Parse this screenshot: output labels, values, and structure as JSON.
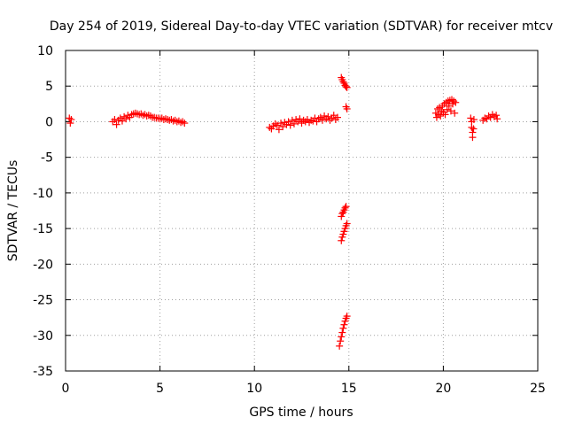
{
  "chart_data": {
    "type": "scatter",
    "title": "Day 254 of 2019, Sidereal Day-to-day VTEC variation (SDTVAR) for receiver mtcv",
    "xlabel": "GPS time / hours",
    "ylabel": "SDTVAR / TECUs",
    "xlim": [
      0,
      25
    ],
    "ylim": [
      -35,
      10
    ],
    "xticks": [
      0,
      5,
      10,
      15,
      20,
      25
    ],
    "yticks": [
      10,
      5,
      0,
      -5,
      -10,
      -15,
      -20,
      -25,
      -30,
      -35
    ],
    "xtick_labels": [
      "0",
      "5",
      "10",
      "15",
      "20",
      "25"
    ],
    "ytick_labels": [
      "10",
      "5",
      "0",
      "-5",
      "-10",
      "-15",
      "-20",
      "-25",
      "-30",
      "-35"
    ],
    "grid": true,
    "marker": "plus",
    "color": "#ff0000",
    "series": [
      {
        "name": "mtcv",
        "points": [
          [
            0.2,
            0.5
          ],
          [
            0.25,
            -0.2
          ],
          [
            0.3,
            0.3
          ],
          [
            2.5,
            0.0
          ],
          [
            2.6,
            0.3
          ],
          [
            2.7,
            -0.4
          ],
          [
            2.8,
            0.2
          ],
          [
            2.9,
            0.5
          ],
          [
            3.0,
            0.1
          ],
          [
            3.1,
            0.7
          ],
          [
            3.2,
            0.4
          ],
          [
            3.3,
            0.9
          ],
          [
            3.4,
            0.6
          ],
          [
            3.5,
            1.0
          ],
          [
            3.6,
            1.1
          ],
          [
            3.7,
            1.2
          ],
          [
            3.8,
            1.1
          ],
          [
            3.9,
            1.0
          ],
          [
            4.0,
            1.1
          ],
          [
            4.1,
            0.9
          ],
          [
            4.2,
            1.0
          ],
          [
            4.3,
            0.8
          ],
          [
            4.4,
            0.9
          ],
          [
            4.5,
            0.8
          ],
          [
            4.6,
            0.6
          ],
          [
            4.7,
            0.6
          ],
          [
            4.8,
            0.5
          ],
          [
            4.9,
            0.5
          ],
          [
            5.0,
            0.4
          ],
          [
            5.1,
            0.5
          ],
          [
            5.2,
            0.3
          ],
          [
            5.3,
            0.4
          ],
          [
            5.4,
            0.3
          ],
          [
            5.5,
            0.2
          ],
          [
            5.6,
            0.3
          ],
          [
            5.7,
            0.1
          ],
          [
            5.8,
            0.2
          ],
          [
            5.9,
            0.0
          ],
          [
            6.0,
            0.1
          ],
          [
            6.1,
            -0.1
          ],
          [
            6.2,
            0.0
          ],
          [
            6.3,
            -0.2
          ],
          [
            10.8,
            -0.8
          ],
          [
            10.9,
            -1.0
          ],
          [
            11.0,
            -0.6
          ],
          [
            11.1,
            -0.3
          ],
          [
            11.2,
            -0.5
          ],
          [
            11.3,
            -1.1
          ],
          [
            11.4,
            -0.2
          ],
          [
            11.5,
            -0.7
          ],
          [
            11.6,
            -0.1
          ],
          [
            11.7,
            -0.4
          ],
          [
            11.8,
            0.0
          ],
          [
            11.9,
            -0.5
          ],
          [
            12.0,
            0.2
          ],
          [
            12.1,
            -0.3
          ],
          [
            12.2,
            0.3
          ],
          [
            12.3,
            0.0
          ],
          [
            12.4,
            0.4
          ],
          [
            12.5,
            -0.2
          ],
          [
            12.6,
            0.2
          ],
          [
            12.7,
            0.0
          ],
          [
            12.8,
            0.3
          ],
          [
            12.9,
            -0.1
          ],
          [
            13.0,
            0.2
          ],
          [
            13.1,
            0.1
          ],
          [
            13.2,
            0.5
          ],
          [
            13.3,
            0.0
          ],
          [
            13.4,
            0.4
          ],
          [
            13.5,
            0.6
          ],
          [
            13.6,
            0.2
          ],
          [
            13.7,
            0.8
          ],
          [
            13.8,
            0.4
          ],
          [
            13.9,
            0.7
          ],
          [
            14.0,
            0.2
          ],
          [
            14.1,
            0.5
          ],
          [
            14.2,
            0.9
          ],
          [
            14.3,
            0.3
          ],
          [
            14.4,
            0.6
          ],
          [
            14.6,
            6.2
          ],
          [
            14.65,
            5.9
          ],
          [
            14.7,
            5.6
          ],
          [
            14.75,
            5.4
          ],
          [
            14.8,
            5.1
          ],
          [
            14.85,
            4.9
          ],
          [
            14.9,
            4.8
          ],
          [
            14.85,
            2.1
          ],
          [
            14.9,
            1.8
          ],
          [
            14.6,
            -13.3
          ],
          [
            14.65,
            -12.9
          ],
          [
            14.7,
            -12.7
          ],
          [
            14.75,
            -12.4
          ],
          [
            14.8,
            -12.1
          ],
          [
            14.85,
            -11.9
          ],
          [
            14.6,
            -16.7
          ],
          [
            14.65,
            -16.2
          ],
          [
            14.7,
            -15.8
          ],
          [
            14.75,
            -15.4
          ],
          [
            14.8,
            -15.0
          ],
          [
            14.85,
            -14.6
          ],
          [
            14.9,
            -14.3
          ],
          [
            14.5,
            -31.5
          ],
          [
            14.55,
            -30.8
          ],
          [
            14.6,
            -30.2
          ],
          [
            14.65,
            -29.6
          ],
          [
            14.7,
            -29.0
          ],
          [
            14.75,
            -28.5
          ],
          [
            14.8,
            -28.0
          ],
          [
            14.85,
            -27.6
          ],
          [
            14.9,
            -27.3
          ],
          [
            19.6,
            1.2
          ],
          [
            19.65,
            0.6
          ],
          [
            19.7,
            1.8
          ],
          [
            19.75,
            1.0
          ],
          [
            19.8,
            2.0
          ],
          [
            19.85,
            0.8
          ],
          [
            19.9,
            1.5
          ],
          [
            19.95,
            2.2
          ],
          [
            20.0,
            1.3
          ],
          [
            20.05,
            2.5
          ],
          [
            20.1,
            1.0
          ],
          [
            20.15,
            2.7
          ],
          [
            20.2,
            1.7
          ],
          [
            20.25,
            2.9
          ],
          [
            20.3,
            2.2
          ],
          [
            20.35,
            3.0
          ],
          [
            20.4,
            1.5
          ],
          [
            20.45,
            3.1
          ],
          [
            20.5,
            2.5
          ],
          [
            20.55,
            2.9
          ],
          [
            20.6,
            1.2
          ],
          [
            20.65,
            2.7
          ],
          [
            21.45,
            0.5
          ],
          [
            21.5,
            0.0
          ],
          [
            21.5,
            -0.8
          ],
          [
            21.55,
            -1.5
          ],
          [
            21.55,
            -2.2
          ],
          [
            21.6,
            -1.0
          ],
          [
            21.62,
            0.3
          ],
          [
            22.1,
            0.2
          ],
          [
            22.2,
            0.5
          ],
          [
            22.3,
            0.4
          ],
          [
            22.4,
            0.8
          ],
          [
            22.5,
            0.6
          ],
          [
            22.6,
            1.0
          ],
          [
            22.7,
            0.7
          ],
          [
            22.8,
            0.9
          ],
          [
            22.85,
            0.4
          ]
        ]
      }
    ]
  }
}
